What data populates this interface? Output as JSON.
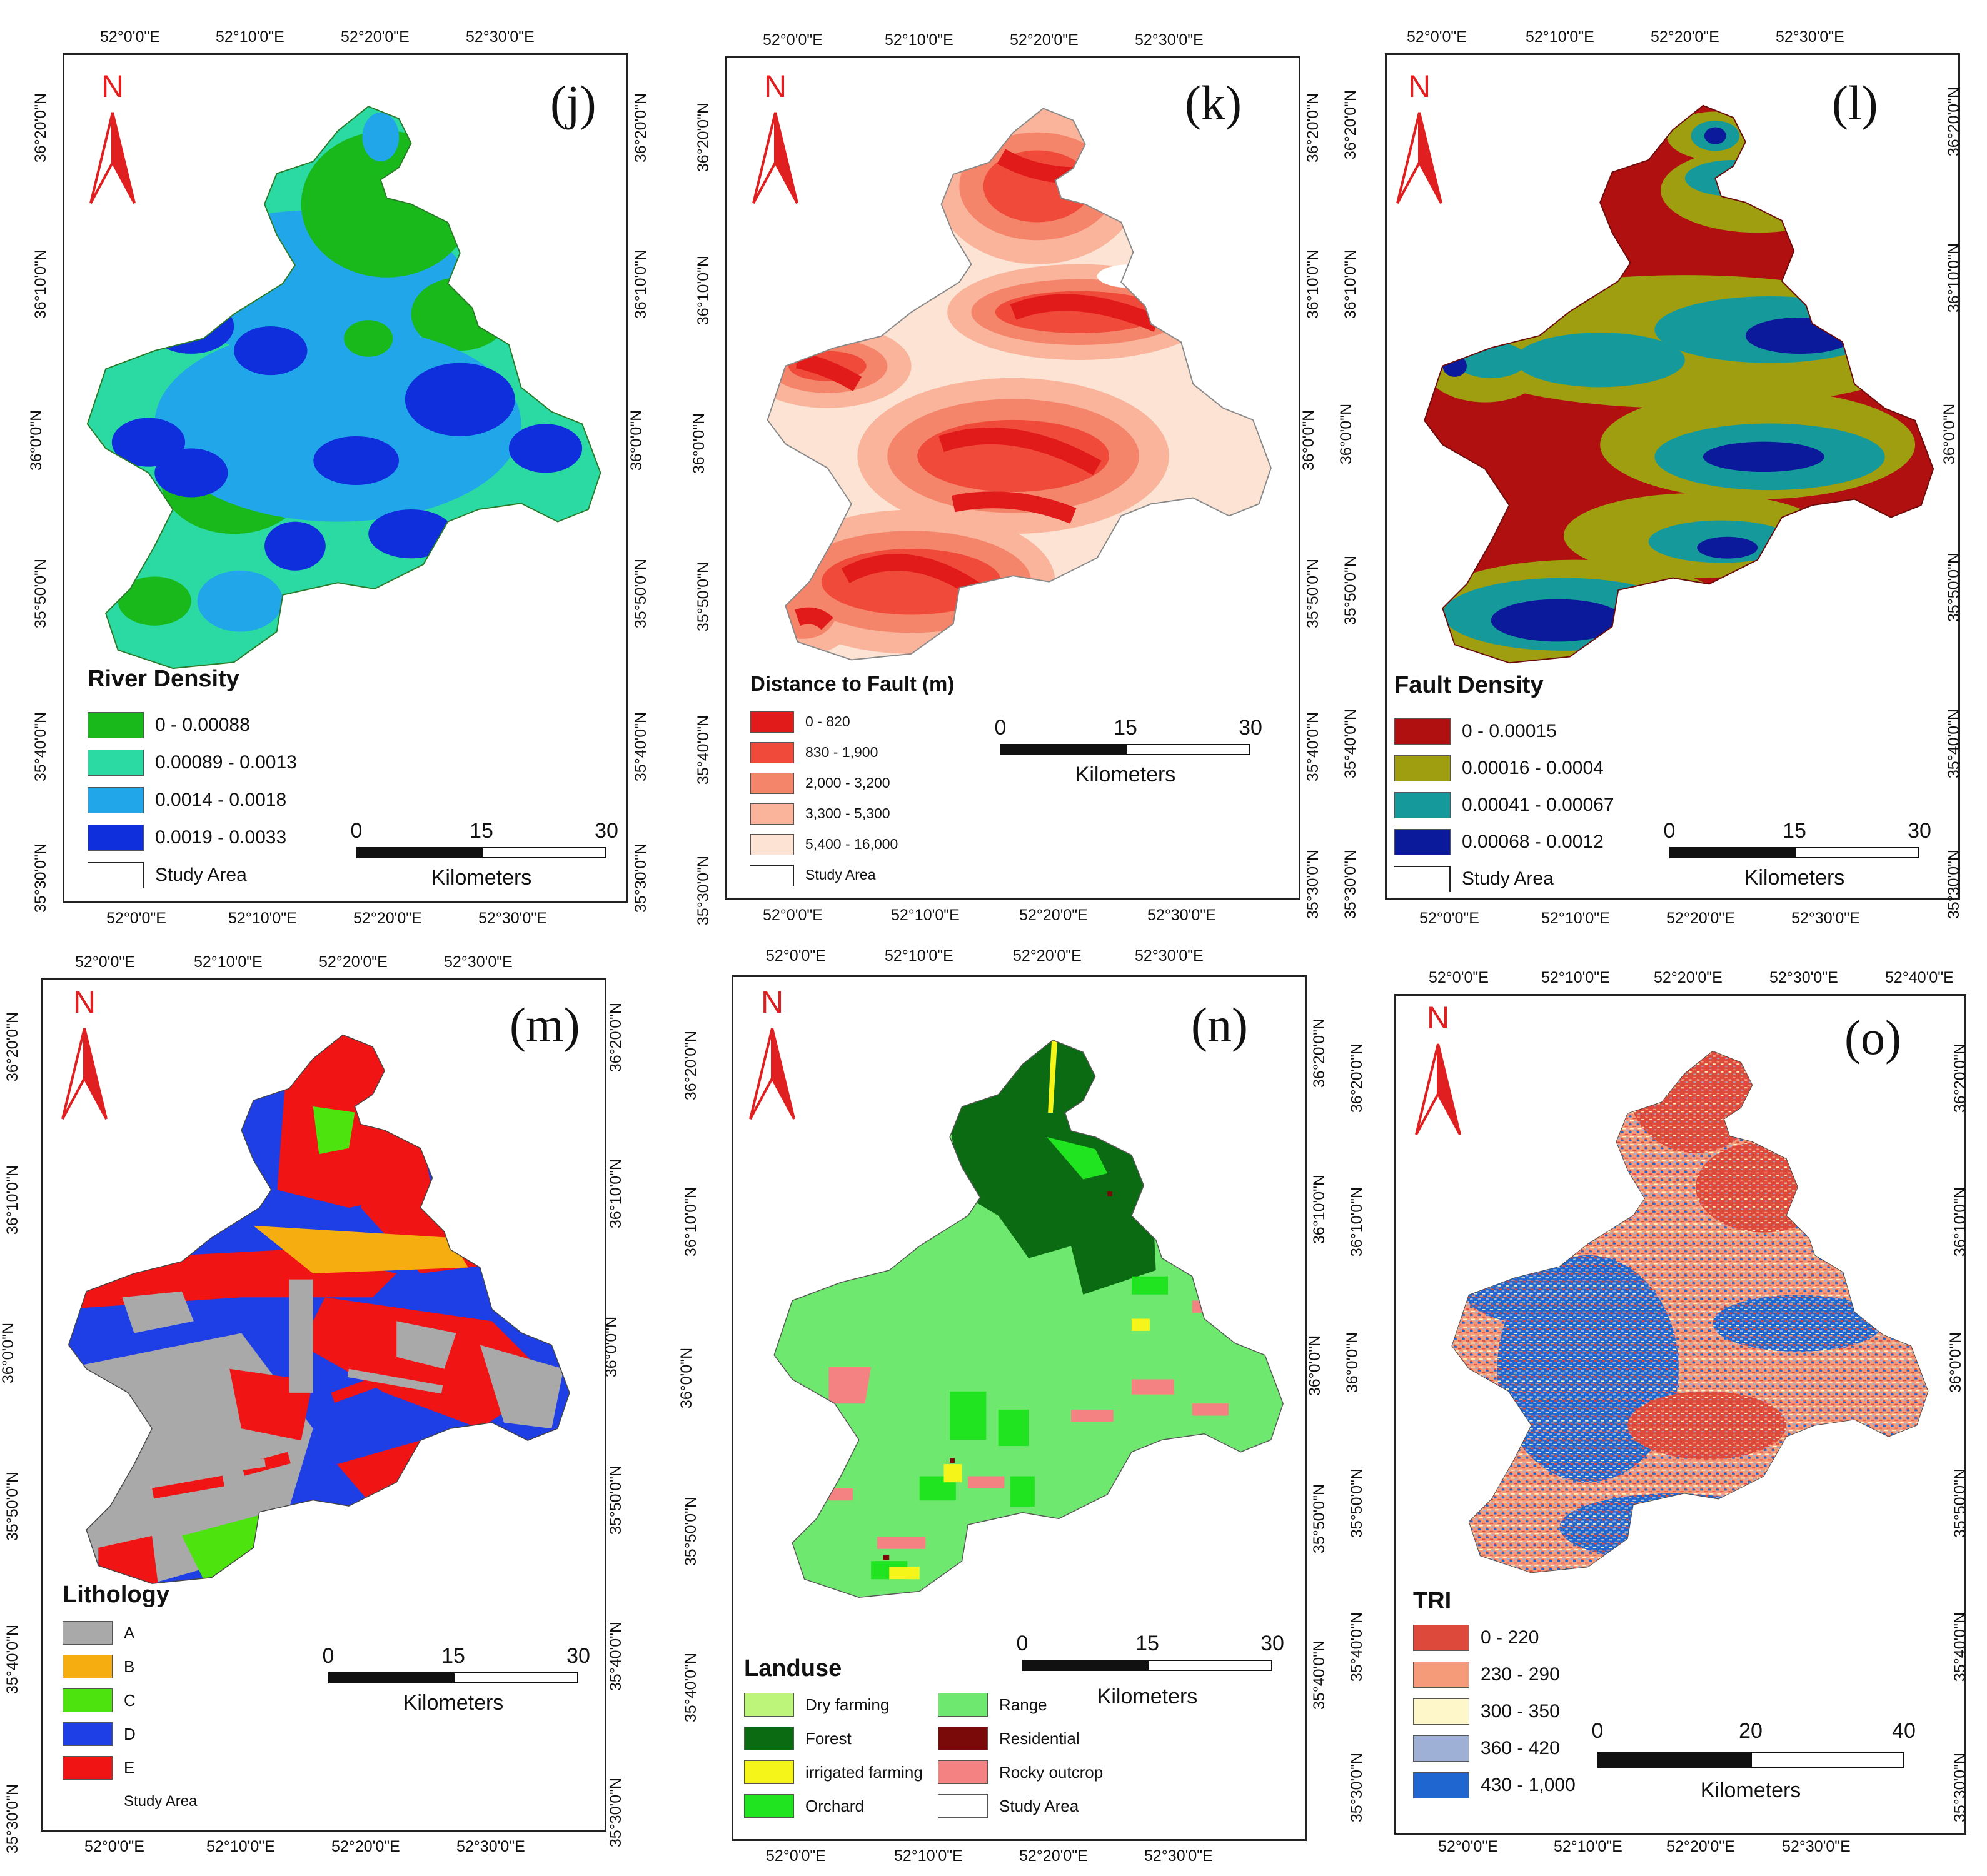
{
  "north_letter": "N",
  "kilometers_label": "Kilometers",
  "study_area_label": "Study Area",
  "panels": {
    "j": {
      "label": "(j)",
      "legend_title": "River Density",
      "top_lon": [
        "52°0'0\"E",
        "52°10'0\"E",
        "52°20'0\"E",
        "52°30'0\"E"
      ],
      "bottom_lon": [
        "52°0'0\"E",
        "52°10'0\"E",
        "52°20'0\"E",
        "52°30'0\"E"
      ],
      "left_lat": [
        "36°20'0\"N",
        "36°10'0\"N",
        "36°0'0\"N",
        "35°50'0\"N",
        "35°40'0\"N",
        "35°30'0\"N"
      ],
      "right_lat": [
        "36°20'0\"N",
        "36°10'0\"N",
        "36°0'0\"N",
        "35°50'0\"N",
        "35°40'0\"N",
        "35°30'0\"N"
      ],
      "scale_ticks": [
        "0",
        "15",
        "30"
      ],
      "classes": [
        {
          "label": "0 - 0.00088",
          "color": "#19b91c"
        },
        {
          "label": "0.00089 - 0.0013",
          "color": "#2bd9a3"
        },
        {
          "label": "0.0014 - 0.0018",
          "color": "#22a6ea"
        },
        {
          "label": "0.0019 - 0.0033",
          "color": "#0f2fdc"
        }
      ]
    },
    "k": {
      "label": "(k)",
      "legend_title": "Distance to Fault (m)",
      "top_lon": [
        "52°0'0\"E",
        "52°10'0\"E",
        "52°20'0\"E",
        "52°30'0\"E"
      ],
      "bottom_lon": [
        "52°0'0\"E",
        "52°10'0\"E",
        "52°20'0\"E",
        "52°30'0\"E"
      ],
      "left_lat": [
        "36°20'0\"N",
        "36°10'0\"N",
        "36°0'0\"N",
        "35°50'0\"N",
        "35°40'0\"N",
        "35°30'0\"N"
      ],
      "right_lat": [
        "36°20'0\"N",
        "36°10'0\"N",
        "36°0'0\"N",
        "35°50'0\"N",
        "35°40'0\"N",
        "35°30'0\"N"
      ],
      "scale_ticks": [
        "0",
        "15",
        "30"
      ],
      "classes": [
        {
          "label": "0 - 820",
          "color": "#e11a1a"
        },
        {
          "label": "830 - 1,900",
          "color": "#ef4a3a"
        },
        {
          "label": "2,000 - 3,200",
          "color": "#f4856a"
        },
        {
          "label": "3,300 - 5,300",
          "color": "#f9b49b"
        },
        {
          "label": "5,400 - 16,000",
          "color": "#fde3d4"
        }
      ]
    },
    "l": {
      "label": "(l)",
      "legend_title": "Fault Density",
      "top_lon": [
        "52°0'0\"E",
        "52°10'0\"E",
        "52°20'0\"E",
        "52°30'0\"E"
      ],
      "bottom_lon": [
        "52°0'0\"E",
        "52°10'0\"E",
        "52°20'0\"E",
        "52°30'0\"E"
      ],
      "left_lat": [
        "36°20'0\"N",
        "36°10'0\"N",
        "36°0'0\"N",
        "35°50'0\"N",
        "35°40'0\"N",
        "35°30'0\"N"
      ],
      "right_lat": [
        "36°20'0\"N",
        "36°10'0\"N",
        "36°0'0\"N",
        "35°50'0\"N",
        "35°40'0\"N",
        "35°30'0\"N"
      ],
      "scale_ticks": [
        "0",
        "15",
        "30"
      ],
      "classes": [
        {
          "label": "0 - 0.00015",
          "color": "#b01010"
        },
        {
          "label": "0.00016 - 0.0004",
          "color": "#9e9e10"
        },
        {
          "label": "0.00041 - 0.00067",
          "color": "#16999a"
        },
        {
          "label": "0.00068 - 0.0012",
          "color": "#0a1a9a"
        }
      ]
    },
    "m": {
      "label": "(m)",
      "legend_title": "Lithology",
      "top_lon": [
        "52°0'0\"E",
        "52°10'0\"E",
        "52°20'0\"E",
        "52°30'0\"E"
      ],
      "bottom_lon": [
        "52°0'0\"E",
        "52°10'0\"E",
        "52°20'0\"E",
        "52°30'0\"E"
      ],
      "left_lat": [
        "36°20'0\"N",
        "36°10'0\"N",
        "36°0'0\"N",
        "35°50'0\"N",
        "35°40'0\"N",
        "35°30'0\"N"
      ],
      "right_lat": [
        "36°20'0\"N",
        "36°10'0\"N",
        "36°0'0\"N",
        "35°50'0\"N",
        "35°40'0\"N",
        "35°30'0\"N"
      ],
      "scale_ticks": [
        "0",
        "15",
        "30"
      ],
      "classes": [
        {
          "label": "A",
          "color": "#a9a9a9"
        },
        {
          "label": "B",
          "color": "#f5ad0f"
        },
        {
          "label": "C",
          "color": "#4de30f"
        },
        {
          "label": "D",
          "color": "#1e3ee6"
        },
        {
          "label": "E",
          "color": "#f01414"
        }
      ]
    },
    "n": {
      "label": "(n)",
      "legend_title": "Landuse",
      "top_lon": [
        "52°0'0\"E",
        "52°10'0\"E",
        "52°20'0\"E",
        "52°30'0\"E"
      ],
      "bottom_lon": [
        "52°0'0\"E",
        "52°10'0\"E",
        "52°20'0\"E",
        "52°30'0\"E"
      ],
      "left_lat": [
        "36°20'0\"N",
        "36°10'0\"N",
        "36°0'0\"N",
        "35°50'0\"N",
        "35°40'0\"N"
      ],
      "right_lat": [
        "36°20'0\"N",
        "36°10'0\"N",
        "36°0'0\"N",
        "35°50'0\"N",
        "35°40'0\"N"
      ],
      "scale_ticks": [
        "0",
        "15",
        "30"
      ],
      "classes_left": [
        {
          "label": "Dry farming",
          "color": "#bdf57a"
        },
        {
          "label": "Forest",
          "color": "#0b6b12"
        },
        {
          "label": "irrigated farming",
          "color": "#f5f51a"
        },
        {
          "label": "Orchard",
          "color": "#1fe41f"
        }
      ],
      "classes_right": [
        {
          "label": "Range",
          "color": "#6fe86f"
        },
        {
          "label": "Residential",
          "color": "#7a0a0a"
        },
        {
          "label": "Rocky outcrop",
          "color": "#f58282"
        },
        {
          "label": "Study Area",
          "color": "#ffffff"
        }
      ]
    },
    "o": {
      "label": "(o)",
      "legend_title": "TRI",
      "top_lon": [
        "52°0'0\"E",
        "52°10'0\"E",
        "52°20'0\"E",
        "52°30'0\"E",
        "52°40'0\"E"
      ],
      "bottom_lon": [
        "52°0'0\"E",
        "52°10'0\"E",
        "52°20'0\"E",
        "52°30'0\"E"
      ],
      "left_lat": [
        "36°20'0\"N",
        "36°10'0\"N",
        "36°0'0\"N",
        "35°50'0\"N",
        "35°40'0\"N",
        "35°30'0\"N"
      ],
      "right_lat": [
        "36°20'0\"N",
        "36°10'0\"N",
        "36°0'0\"N",
        "35°50'0\"N",
        "35°40'0\"N",
        "35°30'0\"N"
      ],
      "scale_ticks": [
        "0",
        "20",
        "40"
      ],
      "classes": [
        {
          "label": "0 - 220",
          "color": "#dd4a3c"
        },
        {
          "label": "230 - 290",
          "color": "#f59b7a"
        },
        {
          "label": "300 - 350",
          "color": "#fdf7c9"
        },
        {
          "label": "360 - 420",
          "color": "#9fb0d6"
        },
        {
          "label": "430 - 1,000",
          "color": "#1f66d1"
        }
      ]
    }
  }
}
